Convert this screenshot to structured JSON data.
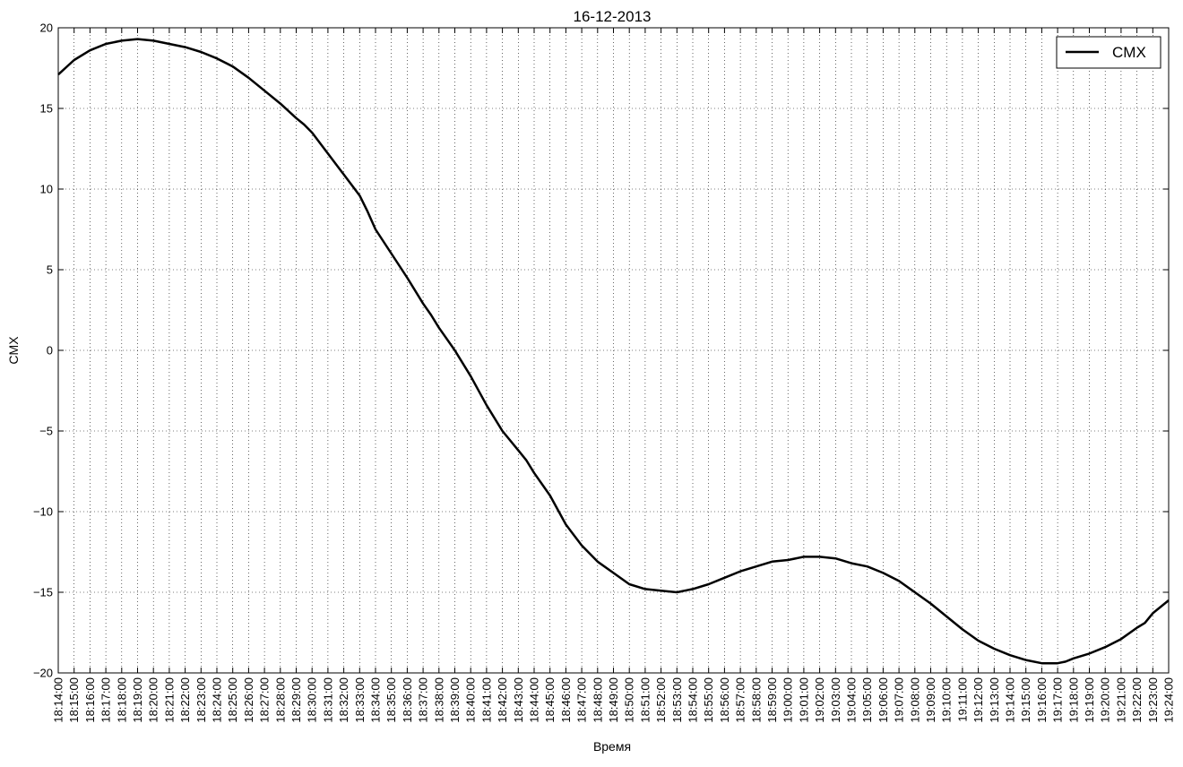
{
  "chart_data": {
    "type": "line",
    "title": "16-12-2013",
    "xlabel": "Время",
    "ylabel": "CMX",
    "xlim": [
      "18:14:00",
      "19:24:00"
    ],
    "ylim": [
      -20,
      20
    ],
    "grid": true,
    "legend_position": "top-right",
    "y_ticks": [
      "20",
      "15",
      "10",
      "5",
      "0",
      "−5",
      "−10",
      "−15",
      "−20"
    ],
    "x_tick_labels": [
      "18:14:00",
      "18:15:00",
      "18:16:00",
      "18:17:00",
      "18:18:00",
      "18:19:00",
      "18:20:00",
      "18:21:00",
      "18:22:00",
      "18:23:00",
      "18:24:00",
      "18:25:00",
      "18:26:00",
      "18:27:00",
      "18:28:00",
      "18:29:00",
      "18:30:00",
      "18:31:00",
      "18:32:00",
      "18:33:00",
      "18:34:00",
      "18:35:00",
      "18:36:00",
      "18:37:00",
      "18:38:00",
      "18:39:00",
      "18:40:00",
      "18:41:00",
      "18:42:00",
      "18:43:00",
      "18:44:00",
      "18:45:00",
      "18:46:00",
      "18:47:00",
      "18:48:00",
      "18:49:00",
      "18:50:00",
      "18:51:00",
      "18:52:00",
      "18:53:00",
      "18:54:00",
      "18:55:00",
      "18:56:00",
      "18:57:00",
      "18:58:00",
      "18:59:00",
      "19:00:00",
      "19:01:00",
      "19:02:00",
      "19:03:00",
      "19:04:00",
      "19:05:00",
      "19:06:00",
      "19:07:00",
      "19:08:00",
      "19:09:00",
      "19:10:00",
      "19:11:00",
      "19:12:00",
      "19:13:00",
      "19:14:00",
      "19:15:00",
      "19:16:00",
      "19:17:00",
      "19:18:00",
      "19:19:00",
      "19:20:00",
      "19:21:00",
      "19:22:00",
      "19:23:00",
      "19:24:00"
    ],
    "series": [
      {
        "name": "CMX",
        "color": "#000000",
        "x": [
          "18:14:00",
          "18:15:00",
          "18:16:00",
          "18:17:00",
          "18:18:00",
          "18:19:00",
          "18:20:00",
          "18:21:00",
          "18:22:00",
          "18:23:00",
          "18:24:00",
          "18:25:00",
          "18:26:00",
          "18:27:00",
          "18:28:00",
          "18:29:00",
          "18:29:30",
          "18:30:00",
          "18:31:00",
          "18:32:00",
          "18:33:00",
          "18:33:30",
          "18:34:00",
          "18:35:00",
          "18:36:00",
          "18:37:00",
          "18:37:30",
          "18:38:00",
          "18:39:00",
          "18:40:00",
          "18:41:00",
          "18:42:00",
          "18:43:00",
          "18:43:30",
          "18:44:00",
          "18:45:00",
          "18:46:00",
          "18:47:00",
          "18:48:00",
          "18:49:00",
          "18:50:00",
          "18:51:00",
          "18:52:00",
          "18:53:00",
          "18:53:30",
          "18:54:00",
          "18:55:00",
          "18:56:00",
          "18:57:00",
          "18:58:00",
          "18:59:00",
          "19:00:00",
          "19:01:00",
          "19:02:00",
          "19:03:00",
          "19:04:00",
          "19:05:00",
          "19:06:00",
          "19:07:00",
          "19:08:00",
          "19:09:00",
          "19:10:00",
          "19:11:00",
          "19:12:00",
          "19:13:00",
          "19:14:00",
          "19:15:00",
          "19:16:00",
          "19:17:00",
          "19:17:30",
          "19:18:00",
          "19:19:00",
          "19:20:00",
          "19:21:00",
          "19:22:00",
          "19:22:30",
          "19:23:00",
          "19:24:00"
        ],
        "y": [
          17.1,
          18.0,
          18.6,
          19.0,
          19.2,
          19.3,
          19.2,
          19.0,
          18.8,
          18.5,
          18.1,
          17.6,
          16.9,
          16.1,
          15.3,
          14.4,
          14.0,
          13.5,
          12.2,
          10.9,
          9.6,
          8.6,
          7.5,
          6.0,
          4.5,
          2.9,
          2.2,
          1.4,
          0.0,
          -1.6,
          -3.4,
          -5.0,
          -6.2,
          -6.8,
          -7.6,
          -9.0,
          -10.8,
          -12.1,
          -13.1,
          -13.8,
          -14.5,
          -14.8,
          -14.9,
          -15.0,
          -14.9,
          -14.8,
          -14.5,
          -14.1,
          -13.7,
          -13.4,
          -13.1,
          -13.0,
          -12.8,
          -12.8,
          -12.9,
          -13.2,
          -13.4,
          -13.8,
          -14.3,
          -15.0,
          -15.7,
          -16.5,
          -17.3,
          -18.0,
          -18.5,
          -18.9,
          -19.2,
          -19.4,
          -19.4,
          -19.3,
          -19.1,
          -18.8,
          -18.4,
          -17.9,
          -17.2,
          -16.9,
          -16.3,
          -15.5
        ]
      }
    ]
  }
}
